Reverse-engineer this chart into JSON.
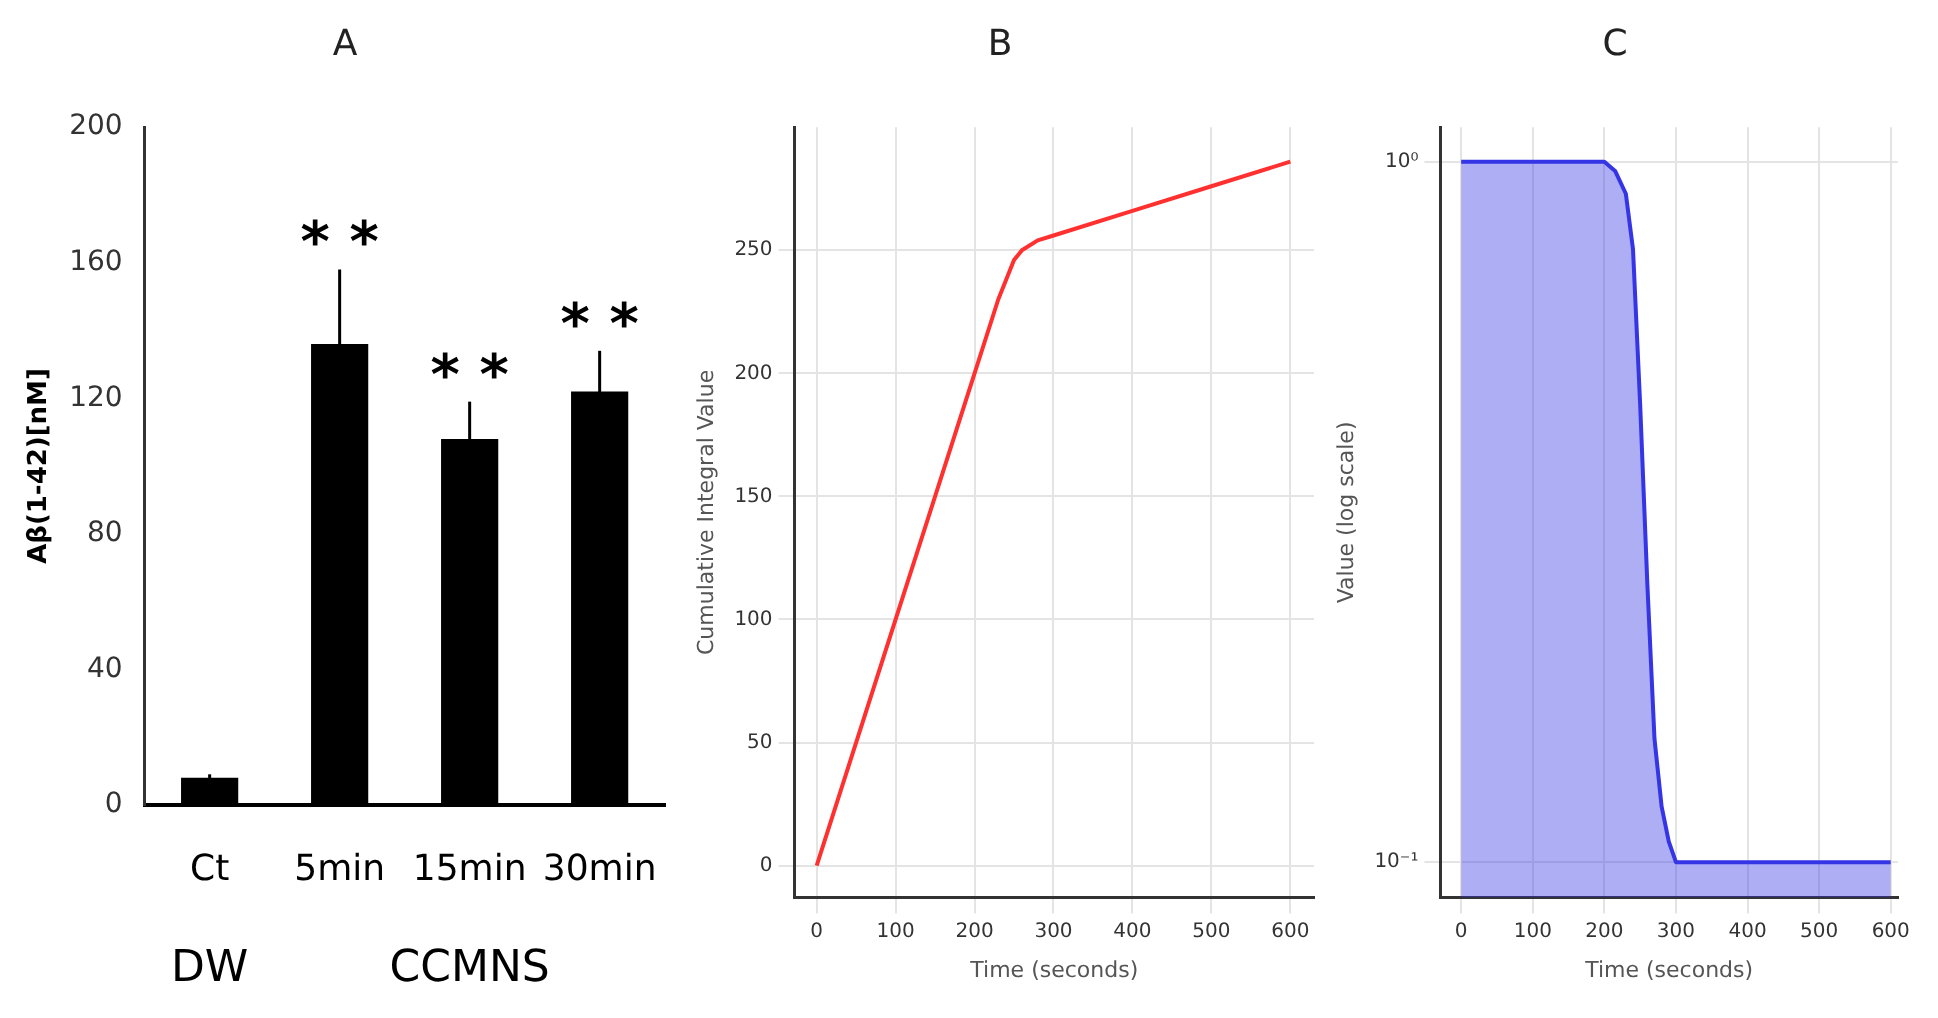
{
  "chart_data": [
    {
      "type": "bar",
      "title": "A",
      "ylabel": "Aβ(1-42)[nM]",
      "categories": [
        "Ct",
        "5min",
        "15min",
        "30min"
      ],
      "values": [
        8,
        136,
        108,
        122
      ],
      "errors": [
        1,
        22,
        11,
        12
      ],
      "color": "#000000",
      "ylim": [
        0,
        200
      ],
      "yticks": [
        0,
        40,
        80,
        120,
        160,
        200
      ],
      "grid": false,
      "annotations": [
        "* *",
        "* *",
        "* *",
        "DW",
        "CCMNS"
      ]
    },
    {
      "type": "line",
      "title": "B",
      "xlabel": "Time (seconds)",
      "ylabel": "Cumulative Integral Value",
      "x": [
        0,
        100,
        200,
        230,
        250,
        260,
        280,
        300,
        400,
        500,
        600
      ],
      "values": [
        0,
        100,
        200,
        230,
        246,
        250,
        254,
        256,
        266,
        276,
        286
      ],
      "color": "#ff3030",
      "xlim": [
        -28,
        630
      ],
      "ylim": [
        -13,
        300
      ],
      "xticks": [
        0,
        100,
        200,
        300,
        400,
        500,
        600
      ],
      "yticks": [
        0,
        50,
        100,
        150,
        200,
        250
      ],
      "grid": true,
      "marker": "none"
    },
    {
      "type": "area",
      "title": "C",
      "xlabel": "Time (seconds)",
      "ylabel": "Value (log scale)",
      "x": [
        0,
        200,
        215,
        230,
        240,
        250,
        260,
        270,
        280,
        290,
        300,
        600
      ],
      "values": [
        1,
        1,
        0.97,
        0.9,
        0.75,
        0.45,
        0.25,
        0.15,
        0.12,
        0.107,
        0.1,
        0.1
      ],
      "color": "#3535e6",
      "log": true,
      "xlim": [
        -29,
        610
      ],
      "ylim": [
        0.089,
        1.12
      ],
      "xticks": [
        0,
        100,
        200,
        300,
        400,
        500,
        600
      ],
      "yticks": [
        {
          "value": 1,
          "label": "10⁰"
        },
        {
          "value": 0.1,
          "label": "10⁻¹"
        }
      ],
      "grid": true,
      "marker": "none"
    }
  ]
}
